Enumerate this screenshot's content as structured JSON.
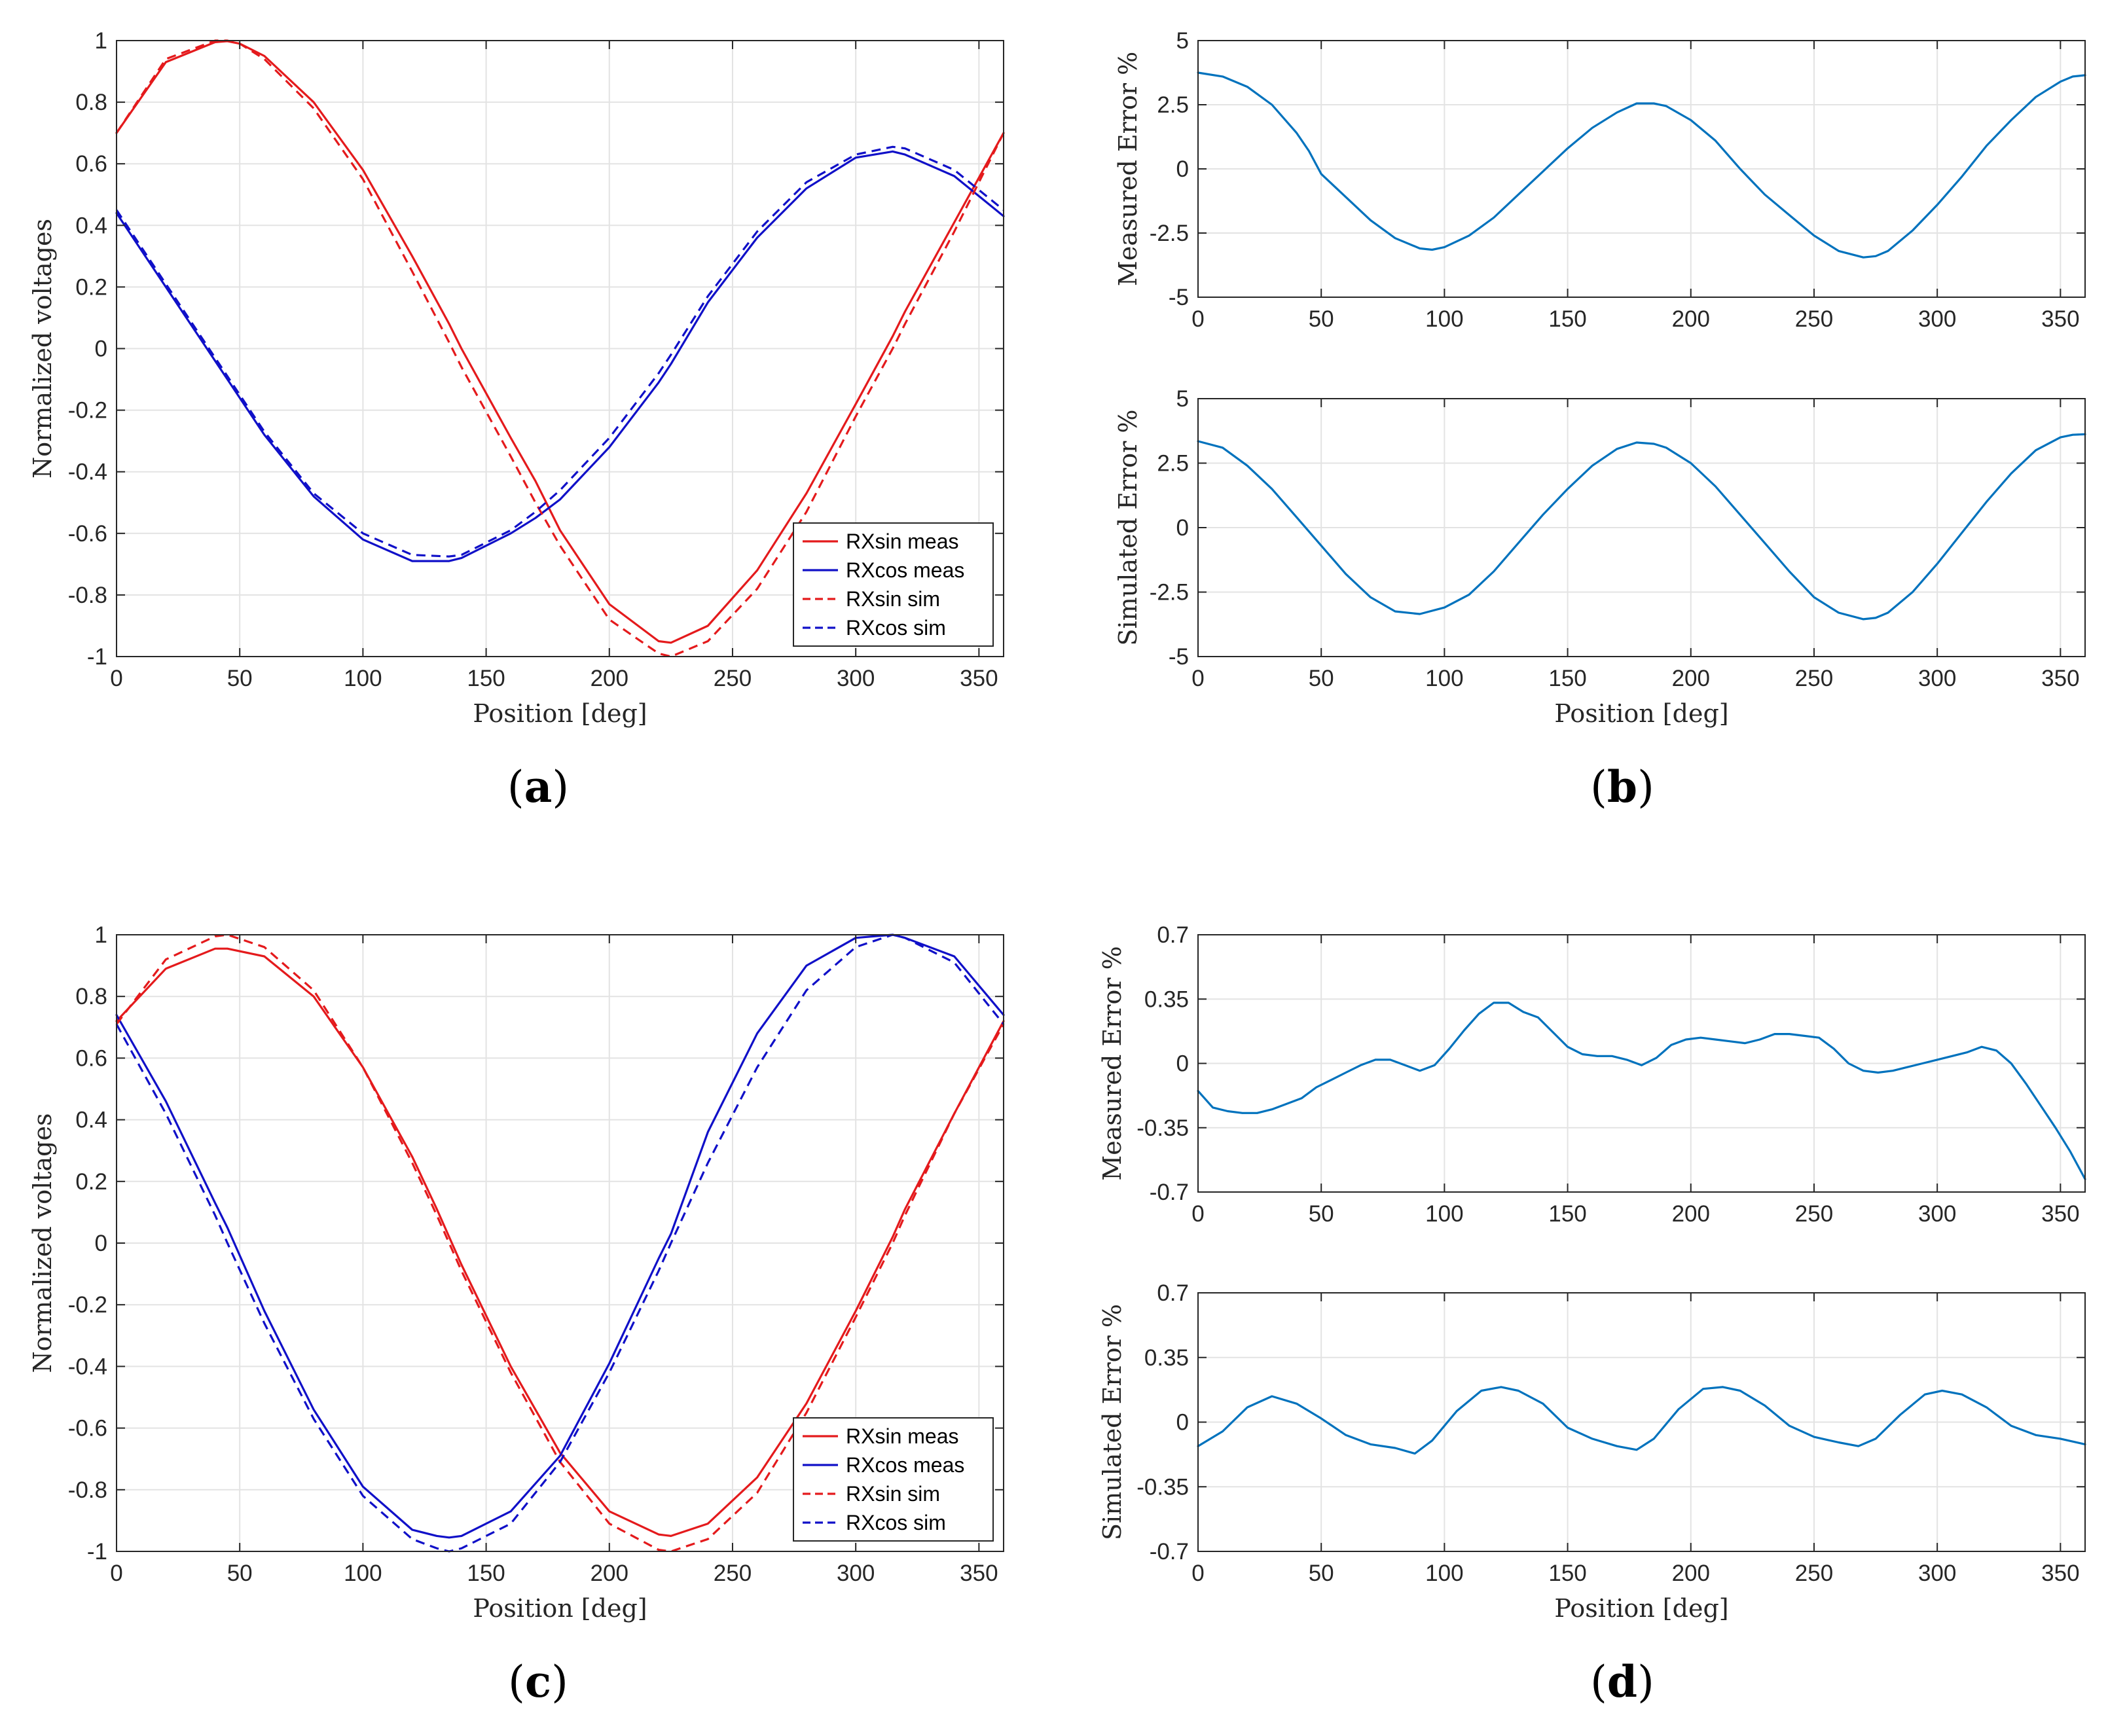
{
  "panel_labels": [
    "a",
    "b",
    "c",
    "d"
  ],
  "colors": {
    "meas_sin": "#e41a1c",
    "meas_cos": "#1010c8",
    "error": "#0072bd",
    "grid": "#e3e3e3",
    "axis": "#262626"
  },
  "chart_data": [
    {
      "id": "a",
      "type": "line",
      "title": "",
      "xlabel": "Position [deg]",
      "ylabel": "Normalized voltages",
      "xlim": [
        0,
        360
      ],
      "ylim": [
        -1,
        1
      ],
      "xticks": [
        0,
        50,
        100,
        150,
        200,
        250,
        300,
        350
      ],
      "yticks": [
        -1,
        -0.8,
        -0.6,
        -0.4,
        -0.2,
        0,
        0.2,
        0.4,
        0.6,
        0.8,
        1
      ],
      "yticklabels": [
        "-1",
        "-0.8",
        "-0.6",
        "-0.4",
        "-0.2",
        "0",
        "0.2",
        "0.4",
        "0.6",
        "0.8",
        "1"
      ],
      "grid": true,
      "legend": "bottom-right",
      "x": [
        0,
        20,
        40,
        45,
        50,
        60,
        80,
        100,
        120,
        135,
        140,
        160,
        170,
        180,
        200,
        220,
        225,
        240,
        260,
        280,
        300,
        315,
        320,
        340,
        360
      ],
      "series": [
        {
          "name": "RXsin meas",
          "style": "solid",
          "color": "#e41a1c",
          "values": [
            0.7,
            0.93,
            0.995,
            0.998,
            0.99,
            0.95,
            0.8,
            0.58,
            0.3,
            0.08,
            0.0,
            -0.29,
            -0.43,
            -0.59,
            -0.83,
            -0.95,
            -0.955,
            -0.9,
            -0.72,
            -0.47,
            -0.18,
            0.04,
            0.12,
            0.41,
            0.7
          ]
        },
        {
          "name": "RXcos meas",
          "style": "solid",
          "color": "#1010c8",
          "values": [
            0.44,
            0.2,
            -0.04,
            -0.1,
            -0.16,
            -0.28,
            -0.48,
            -0.62,
            -0.69,
            -0.69,
            -0.68,
            -0.6,
            -0.55,
            -0.49,
            -0.32,
            -0.11,
            -0.05,
            0.15,
            0.36,
            0.52,
            0.62,
            0.64,
            0.63,
            0.56,
            0.43
          ]
        },
        {
          "name": "RXsin sim",
          "style": "dashed",
          "color": "#e41a1c",
          "values": [
            0.7,
            0.94,
            1.0,
            1.0,
            0.99,
            0.94,
            0.78,
            0.55,
            0.25,
            0.02,
            -0.06,
            -0.35,
            -0.5,
            -0.64,
            -0.88,
            -0.99,
            -1.0,
            -0.95,
            -0.78,
            -0.53,
            -0.22,
            0.0,
            0.08,
            0.38,
            0.7
          ]
        },
        {
          "name": "RXcos sim",
          "style": "dashed",
          "color": "#1010c8",
          "values": [
            0.45,
            0.21,
            -0.03,
            -0.09,
            -0.15,
            -0.27,
            -0.47,
            -0.6,
            -0.67,
            -0.675,
            -0.67,
            -0.59,
            -0.53,
            -0.46,
            -0.29,
            -0.08,
            -0.02,
            0.17,
            0.38,
            0.54,
            0.63,
            0.655,
            0.65,
            0.58,
            0.45
          ]
        }
      ]
    },
    {
      "id": "b-measured",
      "type": "line",
      "xlabel": "",
      "ylabel": "Measured Error %",
      "xlim": [
        0,
        360
      ],
      "ylim": [
        -5,
        5
      ],
      "xticks": [
        0,
        50,
        100,
        150,
        200,
        250,
        300,
        350
      ],
      "yticks": [
        -5,
        -2.5,
        0,
        2.5,
        5
      ],
      "yticklabels": [
        "-5",
        "-2.5",
        "0",
        "2.5",
        "5"
      ],
      "grid": true,
      "x": [
        0,
        10,
        20,
        30,
        40,
        45,
        50,
        60,
        70,
        80,
        90,
        95,
        100,
        110,
        120,
        130,
        140,
        150,
        160,
        170,
        178,
        185,
        190,
        200,
        210,
        220,
        225,
        230,
        240,
        250,
        260,
        270,
        275,
        280,
        290,
        300,
        310,
        320,
        330,
        340,
        350,
        355,
        360
      ],
      "series": [
        {
          "name": "Measured Error",
          "style": "solid",
          "color": "#0072bd",
          "values": [
            3.75,
            3.6,
            3.2,
            2.5,
            1.4,
            0.7,
            -0.2,
            -1.1,
            -2.0,
            -2.7,
            -3.1,
            -3.15,
            -3.05,
            -2.6,
            -1.9,
            -1.0,
            -0.1,
            0.8,
            1.6,
            2.2,
            2.55,
            2.55,
            2.45,
            1.9,
            1.1,
            0.0,
            -0.5,
            -1.0,
            -1.8,
            -2.6,
            -3.2,
            -3.45,
            -3.4,
            -3.2,
            -2.4,
            -1.4,
            -0.3,
            0.9,
            1.9,
            2.8,
            3.4,
            3.6,
            3.65
          ]
        }
      ]
    },
    {
      "id": "b-simulated",
      "type": "line",
      "xlabel": "Position [deg]",
      "ylabel": "Simulated Error %",
      "xlim": [
        0,
        360
      ],
      "ylim": [
        -5,
        5
      ],
      "xticks": [
        0,
        50,
        100,
        150,
        200,
        250,
        300,
        350
      ],
      "yticks": [
        -5,
        -2.5,
        0,
        2.5,
        5
      ],
      "yticklabels": [
        "-5",
        "-2.5",
        "0",
        "2.5",
        "5"
      ],
      "grid": true,
      "x": [
        0,
        10,
        20,
        30,
        40,
        50,
        60,
        70,
        80,
        90,
        100,
        110,
        120,
        130,
        140,
        150,
        160,
        170,
        178,
        185,
        190,
        200,
        210,
        220,
        230,
        240,
        250,
        260,
        270,
        275,
        280,
        290,
        300,
        310,
        320,
        330,
        340,
        350,
        355,
        360
      ],
      "series": [
        {
          "name": "Simulated Error",
          "style": "solid",
          "color": "#0072bd",
          "values": [
            3.35,
            3.1,
            2.4,
            1.5,
            0.4,
            -0.7,
            -1.8,
            -2.7,
            -3.25,
            -3.35,
            -3.1,
            -2.6,
            -1.7,
            -0.6,
            0.5,
            1.5,
            2.4,
            3.05,
            3.3,
            3.25,
            3.1,
            2.5,
            1.6,
            0.5,
            -0.6,
            -1.7,
            -2.7,
            -3.3,
            -3.55,
            -3.5,
            -3.3,
            -2.5,
            -1.4,
            -0.2,
            1.0,
            2.1,
            3.0,
            3.5,
            3.6,
            3.62
          ]
        }
      ]
    },
    {
      "id": "c",
      "type": "line",
      "title": "",
      "xlabel": "Position [deg]",
      "ylabel": "Normalized voltages",
      "xlim": [
        0,
        360
      ],
      "ylim": [
        -1,
        1
      ],
      "xticks": [
        0,
        50,
        100,
        150,
        200,
        250,
        300,
        350
      ],
      "yticks": [
        -1,
        -0.8,
        -0.6,
        -0.4,
        -0.2,
        0,
        0.2,
        0.4,
        0.6,
        0.8,
        1
      ],
      "yticklabels": [
        "-1",
        "-0.8",
        "-0.6",
        "-0.4",
        "-0.2",
        "0",
        "0.2",
        "0.4",
        "0.6",
        "0.8",
        "1"
      ],
      "grid": true,
      "legend": "bottom-right",
      "x": [
        0,
        20,
        40,
        45,
        60,
        80,
        100,
        120,
        130,
        135,
        140,
        160,
        180,
        200,
        220,
        225,
        240,
        260,
        280,
        300,
        315,
        320,
        340,
        360
      ],
      "series": [
        {
          "name": "RXsin meas",
          "style": "solid",
          "color": "#e41a1c",
          "values": [
            0.72,
            0.89,
            0.955,
            0.955,
            0.93,
            0.8,
            0.57,
            0.28,
            0.11,
            0.02,
            -0.07,
            -0.4,
            -0.68,
            -0.87,
            -0.945,
            -0.95,
            -0.91,
            -0.76,
            -0.52,
            -0.22,
            0.02,
            0.11,
            0.42,
            0.72
          ]
        },
        {
          "name": "RXcos meas",
          "style": "solid",
          "color": "#1010c8",
          "values": [
            0.74,
            0.46,
            0.13,
            0.05,
            -0.22,
            -0.54,
            -0.79,
            -0.93,
            -0.95,
            -0.955,
            -0.95,
            -0.87,
            -0.69,
            -0.39,
            -0.05,
            0.03,
            0.36,
            0.68,
            0.9,
            0.99,
            1.0,
            0.99,
            0.93,
            0.74
          ]
        },
        {
          "name": "RXsin sim",
          "style": "dashed",
          "color": "#e41a1c",
          "values": [
            0.71,
            0.92,
            0.995,
            1.0,
            0.96,
            0.82,
            0.57,
            0.26,
            0.09,
            0.0,
            -0.09,
            -0.42,
            -0.71,
            -0.91,
            -0.995,
            -1.0,
            -0.96,
            -0.81,
            -0.55,
            -0.24,
            0.0,
            0.09,
            0.42,
            0.71
          ]
        },
        {
          "name": "RXcos sim",
          "style": "dashed",
          "color": "#1010c8",
          "values": [
            0.71,
            0.42,
            0.09,
            0.0,
            -0.26,
            -0.57,
            -0.82,
            -0.96,
            -0.99,
            -1.0,
            -0.99,
            -0.91,
            -0.71,
            -0.42,
            -0.09,
            0.0,
            0.26,
            0.57,
            0.82,
            0.96,
            1.0,
            0.99,
            0.91,
            0.71
          ]
        }
      ]
    },
    {
      "id": "d-measured",
      "type": "line",
      "xlabel": "",
      "ylabel": "Measured Error %",
      "xlim": [
        0,
        360
      ],
      "ylim": [
        -0.7,
        0.7
      ],
      "xticks": [
        0,
        50,
        100,
        150,
        200,
        250,
        300,
        350
      ],
      "yticks": [
        -0.7,
        -0.35,
        0,
        0.35,
        0.7
      ],
      "yticklabels": [
        "-0.7",
        "-0.35",
        "0",
        "0.35",
        "0.7"
      ],
      "grid": true,
      "x": [
        0,
        6,
        12,
        18,
        24,
        30,
        36,
        42,
        48,
        54,
        60,
        66,
        72,
        78,
        84,
        90,
        96,
        102,
        108,
        114,
        120,
        126,
        132,
        138,
        144,
        150,
        156,
        162,
        168,
        174,
        180,
        186,
        192,
        198,
        204,
        210,
        216,
        222,
        228,
        234,
        240,
        246,
        252,
        258,
        264,
        270,
        276,
        282,
        288,
        294,
        300,
        306,
        312,
        318,
        324,
        330,
        336,
        342,
        348,
        354,
        360
      ],
      "series": [
        {
          "name": "Measured Error",
          "style": "solid",
          "color": "#0072bd",
          "values": [
            -0.15,
            -0.24,
            -0.26,
            -0.27,
            -0.27,
            -0.25,
            -0.22,
            -0.19,
            -0.13,
            -0.09,
            -0.05,
            -0.01,
            0.02,
            0.02,
            -0.01,
            -0.04,
            -0.01,
            0.08,
            0.18,
            0.27,
            0.33,
            0.33,
            0.28,
            0.25,
            0.17,
            0.09,
            0.05,
            0.04,
            0.04,
            0.02,
            -0.01,
            0.03,
            0.1,
            0.13,
            0.14,
            0.13,
            0.12,
            0.11,
            0.13,
            0.16,
            0.16,
            0.15,
            0.14,
            0.08,
            0.0,
            -0.04,
            -0.05,
            -0.04,
            -0.02,
            0.0,
            0.02,
            0.04,
            0.06,
            0.09,
            0.07,
            0.0,
            -0.11,
            -0.23,
            -0.35,
            -0.48,
            -0.63
          ]
        }
      ]
    },
    {
      "id": "d-simulated",
      "type": "line",
      "xlabel": "Position [deg]",
      "ylabel": "Simulated Error %",
      "xlim": [
        0,
        360
      ],
      "ylim": [
        -0.7,
        0.7
      ],
      "xticks": [
        0,
        50,
        100,
        150,
        200,
        250,
        300,
        350
      ],
      "yticks": [
        -0.7,
        -0.35,
        0,
        0.35,
        0.7
      ],
      "yticklabels": [
        "-0.7",
        "-0.35",
        "0",
        "0.35",
        "0.7"
      ],
      "grid": true,
      "x": [
        0,
        10,
        20,
        30,
        40,
        50,
        60,
        70,
        80,
        88,
        95,
        105,
        115,
        123,
        130,
        140,
        150,
        160,
        170,
        178,
        185,
        195,
        205,
        213,
        220,
        230,
        240,
        250,
        260,
        268,
        275,
        285,
        295,
        302,
        310,
        320,
        330,
        340,
        350,
        360
      ],
      "series": [
        {
          "name": "Simulated Error",
          "style": "solid",
          "color": "#0072bd",
          "values": [
            -0.13,
            -0.05,
            0.08,
            0.14,
            0.1,
            0.02,
            -0.07,
            -0.12,
            -0.14,
            -0.17,
            -0.1,
            0.06,
            0.17,
            0.19,
            0.17,
            0.1,
            -0.03,
            -0.09,
            -0.13,
            -0.15,
            -0.09,
            0.07,
            0.18,
            0.19,
            0.17,
            0.09,
            -0.02,
            -0.08,
            -0.11,
            -0.13,
            -0.09,
            0.04,
            0.15,
            0.17,
            0.15,
            0.08,
            -0.02,
            -0.07,
            -0.09,
            -0.12
          ]
        }
      ]
    }
  ]
}
